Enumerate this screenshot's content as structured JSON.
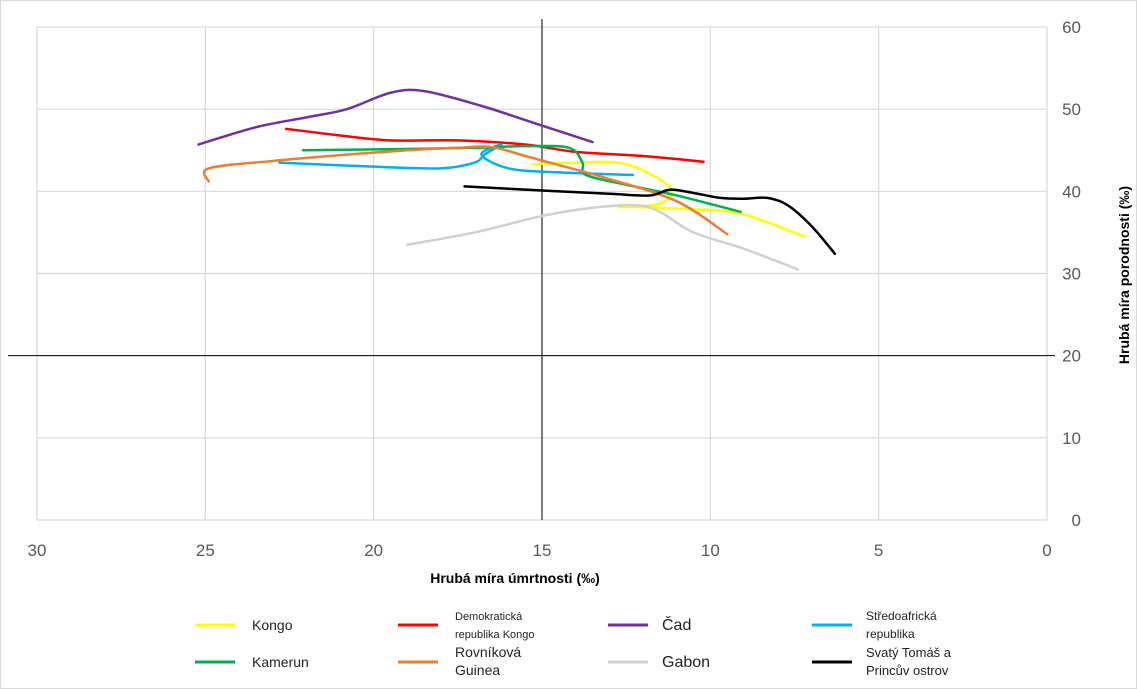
{
  "chart_data": {
    "type": "line",
    "xlabel": "Hrubá míra úmrtnosti (‰)",
    "ylabel": "Hrubá míra porodnosti (‰)",
    "xlim": [
      30,
      0
    ],
    "ylim": [
      0,
      60
    ],
    "x_ticks": [
      "30",
      "25",
      "20",
      "15",
      "10",
      "5",
      "0"
    ],
    "y_ticks": [
      "0",
      "10",
      "20",
      "30",
      "40",
      "50",
      "60"
    ],
    "grid": true,
    "legend_position": "bottom",
    "reference_lines": {
      "x": 15,
      "y": 20
    },
    "series": [
      {
        "name": "Kongo",
        "color": "#FFFF00",
        "points": [
          [
            15.3,
            43.3
          ],
          [
            14,
            43.5
          ],
          [
            12.5,
            43.3
          ],
          [
            11.2,
            40.5
          ],
          [
            11.5,
            38.5
          ],
          [
            12.7,
            38.1
          ],
          [
            12.2,
            38.1
          ],
          [
            10.5,
            37.8
          ],
          [
            9.1,
            37.3
          ],
          [
            7.2,
            34.5
          ]
        ]
      },
      {
        "name": "Demokratická republika Kongo",
        "color": "#FF0000",
        "points": [
          [
            22.6,
            47.6
          ],
          [
            21,
            46.8
          ],
          [
            19.5,
            46.2
          ],
          [
            17.5,
            46.2
          ],
          [
            15.5,
            45.7
          ],
          [
            14,
            44.8
          ],
          [
            12,
            44.3
          ],
          [
            10.2,
            43.6
          ]
        ]
      },
      {
        "name": "Čad",
        "color": "#7030A0",
        "points": [
          [
            25.2,
            45.7
          ],
          [
            23.5,
            47.8
          ],
          [
            22,
            49
          ],
          [
            20.8,
            50
          ],
          [
            19.5,
            52
          ],
          [
            18.5,
            52.2
          ],
          [
            16.8,
            50.4
          ],
          [
            15,
            48
          ],
          [
            13.5,
            46
          ]
        ]
      },
      {
        "name": "Středoafrická republika",
        "color": "#00B0F0",
        "points": [
          [
            22.8,
            43.5
          ],
          [
            20,
            43
          ],
          [
            18,
            42.8
          ],
          [
            17,
            43.5
          ],
          [
            16.7,
            44.5
          ],
          [
            16.2,
            45.7
          ],
          [
            16.8,
            44.5
          ],
          [
            16,
            42.8
          ],
          [
            14.5,
            42.3
          ],
          [
            12.3,
            42
          ]
        ]
      },
      {
        "name": "Kamerun",
        "color": "#00B050",
        "points": [
          [
            22.1,
            45
          ],
          [
            20,
            45.1
          ],
          [
            17,
            45.3
          ],
          [
            15.5,
            45.5
          ],
          [
            14.2,
            45.3
          ],
          [
            13.8,
            43.5
          ],
          [
            13.7,
            42
          ],
          [
            12.5,
            40.8
          ],
          [
            11,
            39.5
          ],
          [
            9.1,
            37.5
          ]
        ]
      },
      {
        "name": "Rovníková Guinea",
        "color": "#ED7D31",
        "points": [
          [
            24.9,
            41.2
          ],
          [
            24.9,
            42.8
          ],
          [
            23,
            43.7
          ],
          [
            21,
            44.4
          ],
          [
            19,
            45
          ],
          [
            17.5,
            45.3
          ],
          [
            16.5,
            45.4
          ],
          [
            15.5,
            44.3
          ],
          [
            14.5,
            43.2
          ],
          [
            13,
            41.5
          ],
          [
            11,
            38.8
          ],
          [
            9.5,
            34.8
          ]
        ]
      },
      {
        "name": "Gabon",
        "color": "#D0D0D0",
        "points": [
          [
            19,
            33.5
          ],
          [
            17,
            35
          ],
          [
            15,
            37
          ],
          [
            13.5,
            38
          ],
          [
            12.2,
            38.3
          ],
          [
            11.5,
            37.5
          ],
          [
            10.5,
            35
          ],
          [
            9,
            33
          ],
          [
            7.4,
            30.5
          ]
        ]
      },
      {
        "name": "Svatý Tomáš a Princův ostrov",
        "color": "#000000",
        "points": [
          [
            17.3,
            40.6
          ],
          [
            15,
            40.1
          ],
          [
            13,
            39.7
          ],
          [
            11.8,
            39.5
          ],
          [
            11.2,
            40.2
          ],
          [
            10.5,
            39.8
          ],
          [
            9.7,
            39.2
          ],
          [
            9,
            39.1
          ],
          [
            8.3,
            39.2
          ],
          [
            7.7,
            38.3
          ],
          [
            7,
            35.8
          ],
          [
            6.3,
            32.4
          ]
        ]
      }
    ]
  }
}
